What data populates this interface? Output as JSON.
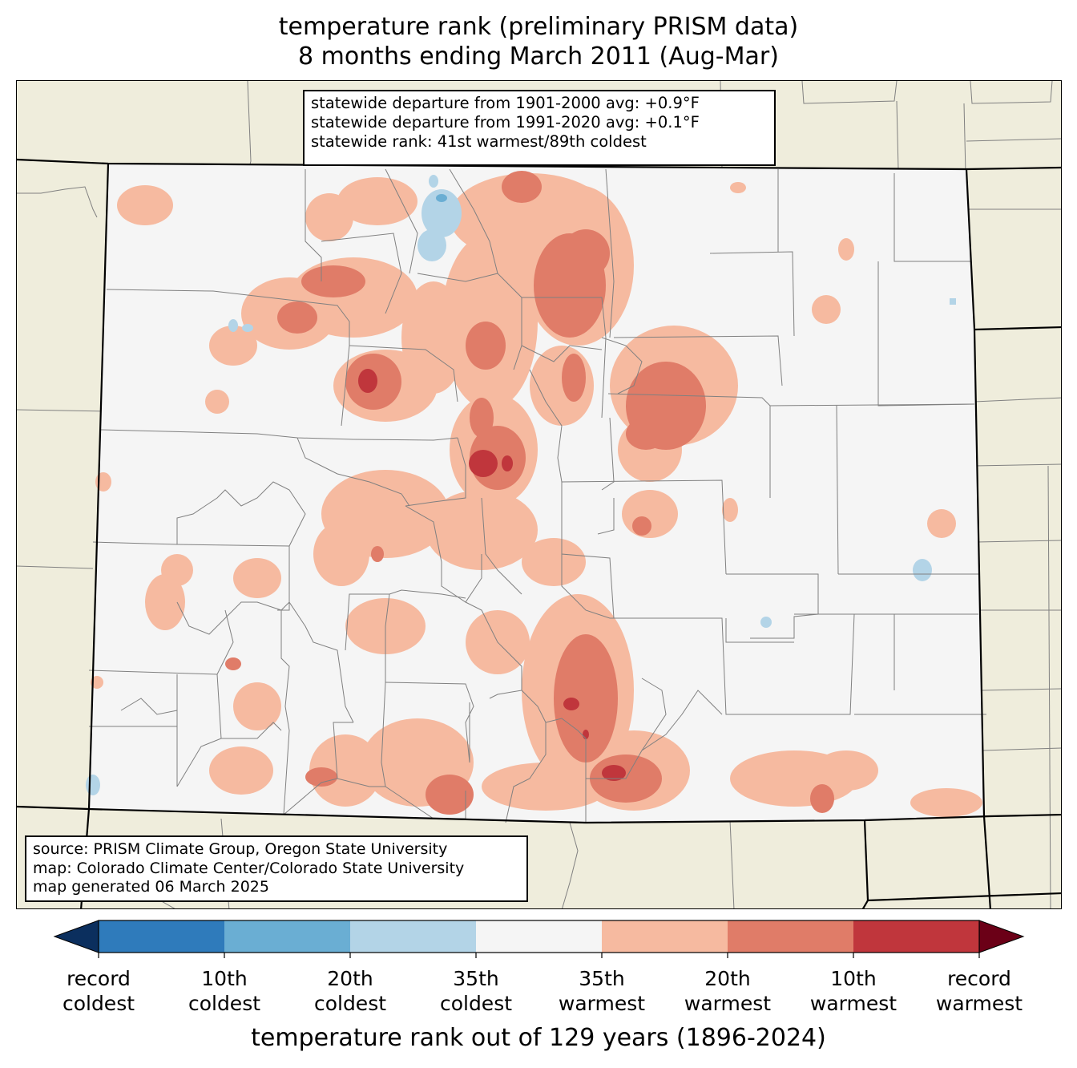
{
  "title": {
    "line1": "temperature rank (preliminary PRISM data)",
    "line2": "8 months ending March 2011 (Aug-Mar)"
  },
  "stats": {
    "line1": "statewide departure from 1901-2000 avg: +0.9°F",
    "line2": "statewide departure from 1991-2020 avg: +0.1°F",
    "line3": "statewide rank: 41st warmest/89th coldest"
  },
  "source": {
    "line1": "source: PRISM Climate Group, Oregon State University",
    "line2": "map: Colorado Climate Center/Colorado State University",
    "line3": "map generated 06 March 2025"
  },
  "colorbar": {
    "title": "temperature rank out of 129 years (1896-2024)",
    "ticks": [
      {
        "line1": "record",
        "line2": "coldest"
      },
      {
        "line1": "10th",
        "line2": "coldest"
      },
      {
        "line1": "20th",
        "line2": "coldest"
      },
      {
        "line1": "35th",
        "line2": "coldest"
      },
      {
        "line1": "35th",
        "line2": "warmest"
      },
      {
        "line1": "20th",
        "line2": "warmest"
      },
      {
        "line1": "10th",
        "line2": "warmest"
      },
      {
        "line1": "record",
        "line2": "warmest"
      }
    ],
    "colors": [
      "#0b2f5e",
      "#2f7bbb",
      "#6aaed3",
      "#b3d4e7",
      "#f5f5f5",
      "#f6baa0",
      "#e07c68",
      "#c0363c",
      "#6b0017"
    ]
  },
  "map_colors": {
    "background": "#efeddc",
    "state_fill": "#f5f5f5",
    "warm_35": "#f6baa0",
    "warm_20": "#e07c68",
    "warm_10": "#c0363c",
    "cold_35": "#b3d4e7",
    "cold_20": "#6aaed3"
  }
}
